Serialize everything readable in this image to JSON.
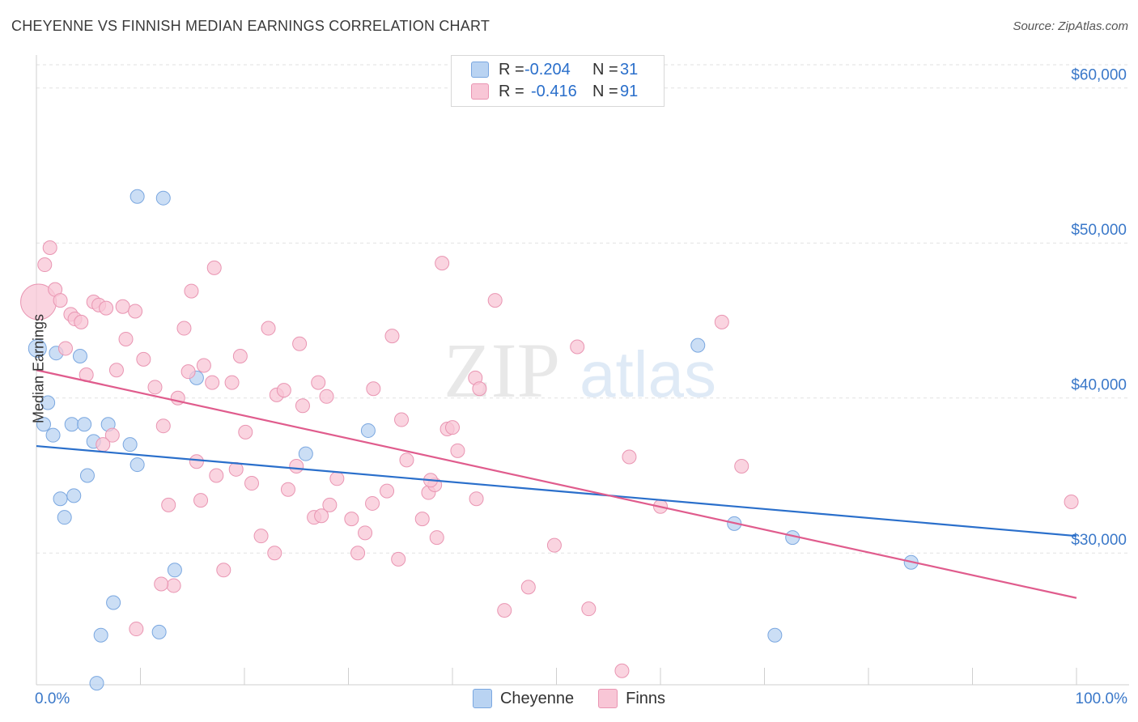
{
  "title": "CHEYENNE VS FINNISH MEDIAN EARNINGS CORRELATION CHART",
  "source": "Source: ZipAtlas.com",
  "watermark": {
    "zip": "ZIP",
    "atlas": "atlas"
  },
  "legend_stats": [
    {
      "r_label": "R =",
      "r_value": "-0.204",
      "n_label": "N =",
      "n_value": "31",
      "color": "#b9d3f2",
      "border": "#7aa7e0"
    },
    {
      "r_label": "R =",
      "r_value": "-0.416",
      "n_label": "N =",
      "n_value": "91",
      "color": "#f8c6d6",
      "border": "#e995b2"
    }
  ],
  "bottom_legend": [
    {
      "label": "Cheyenne",
      "color": "#b9d3f2",
      "border": "#7aa7e0"
    },
    {
      "label": "Finns",
      "color": "#f8c6d6",
      "border": "#e995b2"
    }
  ],
  "chart_data": {
    "type": "scatter",
    "title": "CHEYENNE VS FINNISH MEDIAN EARNINGS CORRELATION CHART",
    "xlabel": "",
    "ylabel": "Median Earnings",
    "xlim": [
      0,
      100
    ],
    "ylim": [
      21500,
      61500
    ],
    "x_tick_labels": [
      "0.0%",
      "100.0%"
    ],
    "y_ticks": [
      30000,
      40000,
      50000,
      60000
    ],
    "y_tick_labels": [
      "$30,000",
      "$40,000",
      "$50,000",
      "$60,000"
    ],
    "grid": true,
    "series": [
      {
        "name": "Cheyenne",
        "color": "#7aa7e0",
        "fill": "#b9d3f2",
        "line_color": "#2a6fcb",
        "trend": [
          [
            0,
            36900
          ],
          [
            100,
            31100
          ]
        ],
        "points": [
          [
            0.1,
            43200
          ],
          [
            1.9,
            42900
          ],
          [
            4.2,
            42700
          ],
          [
            1.1,
            39700
          ],
          [
            0.7,
            38300
          ],
          [
            1.6,
            37600
          ],
          [
            3.4,
            38300
          ],
          [
            4.6,
            38300
          ],
          [
            6.9,
            38300
          ],
          [
            5.5,
            37200
          ],
          [
            9.0,
            37000
          ],
          [
            9.7,
            35700
          ],
          [
            4.9,
            35000
          ],
          [
            2.3,
            33500
          ],
          [
            3.6,
            33700
          ],
          [
            2.7,
            32300
          ],
          [
            15.4,
            41300
          ],
          [
            25.9,
            36400
          ],
          [
            31.9,
            37900
          ],
          [
            9.7,
            53000
          ],
          [
            12.2,
            52900
          ],
          [
            13.3,
            28900
          ],
          [
            7.4,
            26800
          ],
          [
            6.2,
            24700
          ],
          [
            11.8,
            24900
          ],
          [
            5.8,
            21600
          ],
          [
            63.6,
            43400
          ],
          [
            67.1,
            31900
          ],
          [
            72.7,
            31000
          ],
          [
            84.1,
            29400
          ],
          [
            71.0,
            24700
          ]
        ]
      },
      {
        "name": "Finns",
        "color": "#e995b2",
        "fill": "#f8c6d6",
        "line_color": "#e05c8d",
        "trend": [
          [
            0,
            41800
          ],
          [
            100,
            27100
          ]
        ],
        "points": [
          [
            0.2,
            46200
          ],
          [
            1.3,
            49700
          ],
          [
            0.8,
            48600
          ],
          [
            1.8,
            47000
          ],
          [
            2.3,
            46300
          ],
          [
            3.3,
            45400
          ],
          [
            3.7,
            45100
          ],
          [
            4.3,
            44900
          ],
          [
            5.5,
            46200
          ],
          [
            6.0,
            46000
          ],
          [
            6.7,
            45800
          ],
          [
            8.3,
            45900
          ],
          [
            9.5,
            45600
          ],
          [
            2.8,
            43200
          ],
          [
            8.6,
            43800
          ],
          [
            10.3,
            42500
          ],
          [
            7.7,
            41800
          ],
          [
            4.8,
            41500
          ],
          [
            11.4,
            40700
          ],
          [
            13.6,
            40000
          ],
          [
            14.2,
            44500
          ],
          [
            14.6,
            41700
          ],
          [
            14.9,
            46900
          ],
          [
            17.1,
            48400
          ],
          [
            16.1,
            42100
          ],
          [
            16.9,
            41000
          ],
          [
            18.8,
            41000
          ],
          [
            19.6,
            42700
          ],
          [
            20.1,
            37800
          ],
          [
            22.3,
            44500
          ],
          [
            23.1,
            40200
          ],
          [
            23.8,
            40500
          ],
          [
            25.3,
            43500
          ],
          [
            25.6,
            39500
          ],
          [
            27.1,
            41000
          ],
          [
            27.9,
            40100
          ],
          [
            32.4,
            40600
          ],
          [
            34.2,
            44000
          ],
          [
            35.1,
            38600
          ],
          [
            39.0,
            48700
          ],
          [
            39.5,
            38000
          ],
          [
            40.0,
            38100
          ],
          [
            42.2,
            41300
          ],
          [
            42.6,
            40600
          ],
          [
            44.1,
            46300
          ],
          [
            12.2,
            38200
          ],
          [
            7.3,
            37600
          ],
          [
            6.4,
            37000
          ],
          [
            15.4,
            35900
          ],
          [
            17.3,
            35000
          ],
          [
            19.2,
            35400
          ],
          [
            20.7,
            34500
          ],
          [
            24.2,
            34100
          ],
          [
            25.0,
            35600
          ],
          [
            26.7,
            32300
          ],
          [
            27.4,
            32400
          ],
          [
            28.2,
            33100
          ],
          [
            28.9,
            34800
          ],
          [
            30.3,
            32200
          ],
          [
            31.6,
            31300
          ],
          [
            32.3,
            33200
          ],
          [
            33.7,
            34000
          ],
          [
            35.6,
            36000
          ],
          [
            37.1,
            32200
          ],
          [
            37.7,
            33900
          ],
          [
            38.3,
            34400
          ],
          [
            37.9,
            34700
          ],
          [
            40.5,
            36600
          ],
          [
            42.3,
            33500
          ],
          [
            12.7,
            33100
          ],
          [
            15.8,
            33400
          ],
          [
            18.0,
            28900
          ],
          [
            21.6,
            31100
          ],
          [
            22.9,
            30000
          ],
          [
            30.9,
            30000
          ],
          [
            34.8,
            29600
          ],
          [
            38.5,
            31000
          ],
          [
            13.2,
            27900
          ],
          [
            12.0,
            28000
          ],
          [
            9.6,
            25100
          ],
          [
            45.0,
            26300
          ],
          [
            47.3,
            27800
          ],
          [
            49.8,
            30500
          ],
          [
            52.0,
            43300
          ],
          [
            53.1,
            26400
          ],
          [
            57.0,
            36200
          ],
          [
            60.0,
            33000
          ],
          [
            65.9,
            44900
          ],
          [
            67.8,
            35600
          ],
          [
            56.3,
            22400
          ],
          [
            99.5,
            33300
          ]
        ]
      }
    ]
  }
}
